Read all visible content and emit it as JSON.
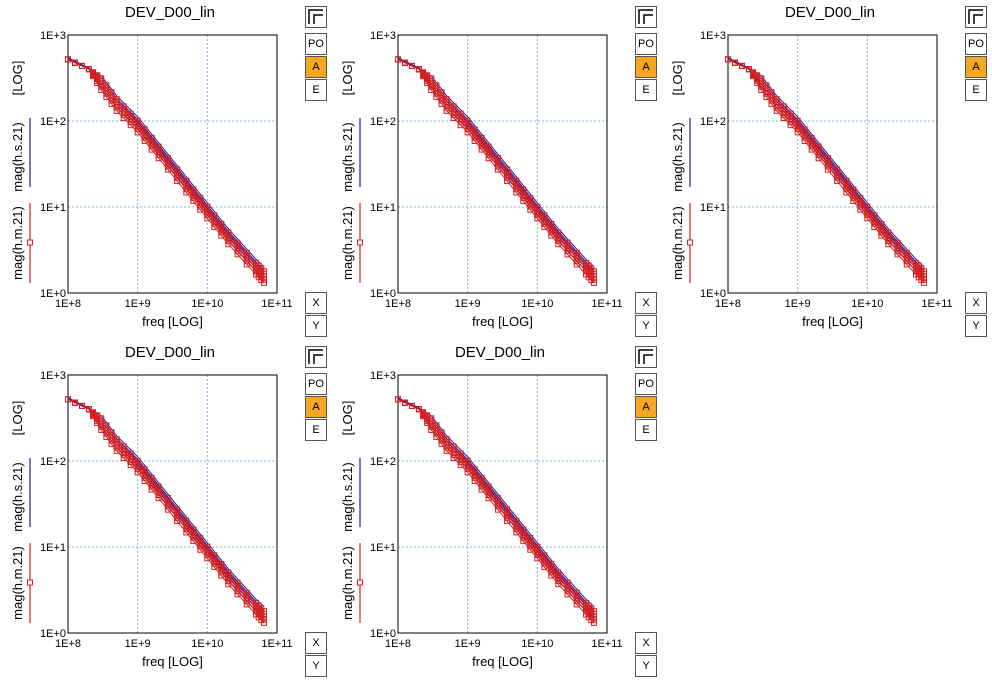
{
  "colors": {
    "series_s": "#1a1aa8",
    "series_m": "#d42020",
    "grid": "#7fb4e0",
    "active_button": "#f5a623"
  },
  "panels": [
    {
      "title": "DEV_D00_lin"
    },
    {
      "title": ""
    },
    {
      "title": "DEV_D00_lin"
    },
    {
      "title": "DEV_D00_lin"
    },
    {
      "title": "DEV_D00_lin"
    }
  ],
  "axes": {
    "xlabel": "freq  [LOG]",
    "ylabel_log": "[LOG]",
    "ylabel_s": "mag(h.s.21)",
    "ylabel_m": "mag(h.m.21)",
    "xticks": [
      "1E+8",
      "1E+9",
      "1E+10",
      "1E+11"
    ],
    "yticks": [
      "1E+0",
      "1E+1",
      "1E+2",
      "1E+3"
    ]
  },
  "controls": {
    "po": "PO",
    "a": "A",
    "e": "E",
    "x": "X",
    "y": "Y"
  },
  "chart_data": {
    "type": "line",
    "xscale": "log",
    "yscale": "log",
    "xlim": [
      100000000.0,
      100000000000.0
    ],
    "ylim": [
      1,
      1000
    ],
    "grid": true,
    "x": [
      100000000.0,
      200000000.0,
      300000000.0,
      500000000.0,
      1000000000.0,
      2000000000.0,
      5000000000.0,
      10000000000.0,
      20000000000.0,
      50000000000.0,
      65000000000.0
    ],
    "series_s_center": [
      540,
      410,
      300,
      175,
      100,
      50,
      20,
      10,
      5,
      2.2,
      1.8
    ],
    "series_m_center": [
      520,
      400,
      280,
      160,
      90,
      45,
      18,
      9,
      4.5,
      2.0,
      1.6
    ],
    "spread_low": 0.82,
    "spread_high": 1.12,
    "curves_per_series": 5
  }
}
